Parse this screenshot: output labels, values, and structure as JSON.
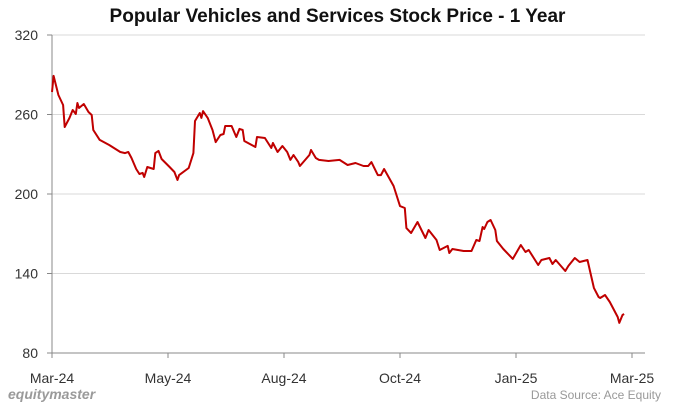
{
  "chart_data": {
    "type": "line",
    "title": "Popular Vehicles and Services Stock Price - 1 Year",
    "xlabel": "",
    "ylabel": "",
    "ylim": [
      80,
      320
    ],
    "yticks": [
      80,
      140,
      200,
      260,
      320
    ],
    "xlim": [
      "2024-03-15",
      "2025-03-15"
    ],
    "xticks": [
      {
        "date": "2024-03-15",
        "label": "Mar-24"
      },
      {
        "date": "2024-05-27",
        "label": "May-24"
      },
      {
        "date": "2024-08-08",
        "label": "Aug-24"
      },
      {
        "date": "2024-10-20",
        "label": "Oct-24"
      },
      {
        "date": "2025-01-01",
        "label": "Jan-25"
      },
      {
        "date": "2025-03-15",
        "label": "Mar-25"
      }
    ],
    "grid": "horizontal",
    "line_color": "#c00000",
    "series": [
      {
        "points": [
          [
            "2024-03-15",
            277.0
          ],
          [
            "2024-03-16",
            289.1
          ],
          [
            "2024-03-19",
            274.7
          ],
          [
            "2024-03-22",
            267.2
          ],
          [
            "2024-03-23",
            250.6
          ],
          [
            "2024-03-26",
            257.4
          ],
          [
            "2024-03-28",
            263.4
          ],
          [
            "2024-03-30",
            260.4
          ],
          [
            "2024-03-31",
            268.7
          ],
          [
            "2024-04-01",
            264.9
          ],
          [
            "2024-04-04",
            267.9
          ],
          [
            "2024-04-07",
            261.9
          ],
          [
            "2024-04-09",
            259.6
          ],
          [
            "2024-04-10",
            248.3
          ],
          [
            "2024-04-14",
            240.8
          ],
          [
            "2024-04-20",
            237.0
          ],
          [
            "2024-04-27",
            231.7
          ],
          [
            "2024-04-30",
            230.9
          ],
          [
            "2024-05-02",
            231.7
          ],
          [
            "2024-05-04",
            227.2
          ],
          [
            "2024-05-07",
            218.9
          ],
          [
            "2024-05-09",
            215.1
          ],
          [
            "2024-05-11",
            215.9
          ],
          [
            "2024-05-12",
            212.8
          ],
          [
            "2024-05-14",
            220.4
          ],
          [
            "2024-05-18",
            218.9
          ],
          [
            "2024-05-19",
            230.9
          ],
          [
            "2024-05-21",
            232.5
          ],
          [
            "2024-05-23",
            226.4
          ],
          [
            "2024-05-28",
            220.4
          ],
          [
            "2024-05-31",
            216.6
          ],
          [
            "2024-06-02",
            210.6
          ],
          [
            "2024-06-03",
            214.3
          ],
          [
            "2024-06-09",
            219.6
          ],
          [
            "2024-06-12",
            230.9
          ],
          [
            "2024-06-13",
            255.1
          ],
          [
            "2024-06-16",
            261.1
          ],
          [
            "2024-06-17",
            257.4
          ],
          [
            "2024-06-18",
            262.6
          ],
          [
            "2024-06-21",
            257.4
          ],
          [
            "2024-06-24",
            248.3
          ],
          [
            "2024-06-26",
            239.2
          ],
          [
            "2024-06-29",
            244.5
          ],
          [
            "2024-07-01",
            245.3
          ],
          [
            "2024-07-02",
            251.3
          ],
          [
            "2024-07-06",
            251.3
          ],
          [
            "2024-07-09",
            243.0
          ],
          [
            "2024-07-11",
            249.1
          ],
          [
            "2024-07-13",
            248.3
          ],
          [
            "2024-07-14",
            240.0
          ],
          [
            "2024-07-21",
            235.5
          ],
          [
            "2024-07-22",
            243.0
          ],
          [
            "2024-07-27",
            242.3
          ],
          [
            "2024-07-31",
            234.7
          ],
          [
            "2024-08-01",
            238.5
          ],
          [
            "2024-08-04",
            231.7
          ],
          [
            "2024-08-07",
            236.2
          ],
          [
            "2024-08-10",
            231.7
          ],
          [
            "2024-08-12",
            225.7
          ],
          [
            "2024-08-14",
            229.4
          ],
          [
            "2024-08-17",
            224.1
          ],
          [
            "2024-08-18",
            221.1
          ],
          [
            "2024-08-24",
            229.4
          ],
          [
            "2024-08-25",
            233.2
          ],
          [
            "2024-08-28",
            227.2
          ],
          [
            "2024-08-30",
            225.7
          ],
          [
            "2024-09-05",
            224.9
          ],
          [
            "2024-09-12",
            225.7
          ],
          [
            "2024-09-17",
            221.9
          ],
          [
            "2024-09-22",
            223.4
          ],
          [
            "2024-09-27",
            221.1
          ],
          [
            "2024-09-30",
            221.1
          ],
          [
            "2024-10-02",
            224.1
          ],
          [
            "2024-10-06",
            214.3
          ],
          [
            "2024-10-08",
            214.3
          ],
          [
            "2024-10-10",
            218.9
          ],
          [
            "2024-10-16",
            206.0
          ],
          [
            "2024-10-20",
            190.9
          ],
          [
            "2024-10-23",
            189.4
          ],
          [
            "2024-10-24",
            174.3
          ],
          [
            "2024-10-27",
            170.6
          ],
          [
            "2024-10-31",
            178.9
          ],
          [
            "2024-11-05",
            166.8
          ],
          [
            "2024-11-07",
            172.8
          ],
          [
            "2024-11-12",
            165.3
          ],
          [
            "2024-11-14",
            157.7
          ],
          [
            "2024-11-19",
            160.8
          ],
          [
            "2024-11-20",
            155.5
          ],
          [
            "2024-11-22",
            158.5
          ],
          [
            "2024-11-29",
            157.0
          ],
          [
            "2024-12-04",
            157.0
          ],
          [
            "2024-12-07",
            165.3
          ],
          [
            "2024-12-09",
            164.5
          ],
          [
            "2024-12-11",
            175.1
          ],
          [
            "2024-12-12",
            173.6
          ],
          [
            "2024-12-14",
            178.9
          ],
          [
            "2024-12-16",
            180.4
          ],
          [
            "2024-12-19",
            172.8
          ],
          [
            "2024-12-20",
            164.5
          ],
          [
            "2024-12-24",
            158.5
          ],
          [
            "2024-12-30",
            151.0
          ],
          [
            "2025-01-04",
            161.5
          ],
          [
            "2025-01-07",
            156.2
          ],
          [
            "2025-01-09",
            157.7
          ],
          [
            "2025-01-15",
            146.4
          ],
          [
            "2025-01-17",
            150.2
          ],
          [
            "2025-01-22",
            151.7
          ],
          [
            "2025-01-24",
            147.2
          ],
          [
            "2025-01-26",
            150.2
          ],
          [
            "2025-02-01",
            141.9
          ],
          [
            "2025-02-03",
            145.7
          ],
          [
            "2025-02-07",
            151.7
          ],
          [
            "2025-02-10",
            148.7
          ],
          [
            "2025-02-15",
            150.2
          ],
          [
            "2025-02-17",
            139.6
          ],
          [
            "2025-02-19",
            129.1
          ],
          [
            "2025-02-22",
            122.3
          ],
          [
            "2025-02-23",
            121.5
          ],
          [
            "2025-02-26",
            123.8
          ],
          [
            "2025-03-01",
            118.5
          ],
          [
            "2025-03-03",
            114.0
          ],
          [
            "2025-03-06",
            107.2
          ],
          [
            "2025-03-07",
            102.7
          ],
          [
            "2025-03-09",
            108.7
          ],
          [
            "2025-03-10",
            109.4
          ]
        ]
      }
    ]
  },
  "footer": {
    "brand": "equitymaster",
    "source": "Data Source: Ace Equity"
  }
}
